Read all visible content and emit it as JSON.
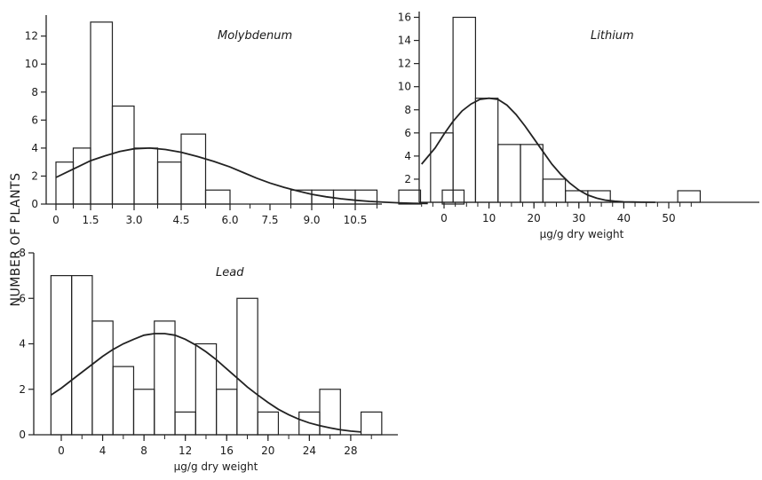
{
  "figure": {
    "shared_ylabel": "NUMBER OF PLANTS"
  },
  "chart_data": [
    {
      "id": "molybdenum",
      "type": "bar",
      "title": "Molybdenum",
      "xlabel": "",
      "ylabel": "NUMBER OF PLANTS",
      "bin_width": 0.75,
      "bins": [
        {
          "x0": 0,
          "x1": 0.75,
          "value": 3
        },
        {
          "x0": 0.75,
          "x1": 1.5,
          "value": 4
        },
        {
          "x0": 1.5,
          "x1": 2.25,
          "value": 13
        },
        {
          "x0": 2.25,
          "x1": 3.0,
          "value": 7
        },
        {
          "x0": 3.0,
          "x1": 3.75,
          "value": 4
        },
        {
          "x0": 3.75,
          "x1": 4.5,
          "value": 3
        },
        {
          "x0": 4.5,
          "x1": 5.25,
          "value": 5
        },
        {
          "x0": 5.25,
          "x1": 6.0,
          "value": 1
        },
        {
          "x0": 8.25,
          "x1": 9.0,
          "value": 1
        },
        {
          "x0": 9.0,
          "x1": 9.75,
          "value": 1
        },
        {
          "x0": 9.75,
          "x1": 10.5,
          "value": 1
        },
        {
          "x0": 10.5,
          "x1": 11.25,
          "value": 1
        },
        {
          "x0": 12.0,
          "x1": 12.75,
          "value": 1
        },
        {
          "x0": 13.5,
          "x1": 14.25,
          "value": 1
        }
      ],
      "xticks": [
        "0",
        "1.5",
        "3.0",
        "4.5",
        "6.0",
        "7.5",
        "9.0",
        "10.5"
      ],
      "yticks": [
        "0",
        "2",
        "4",
        "6",
        "8",
        "10",
        "12"
      ],
      "xlim": [
        0,
        15.2
      ],
      "ylim": [
        0,
        13.5
      ],
      "fit_curve": [
        [
          0,
          1.9
        ],
        [
          0.5,
          2.3
        ],
        [
          1,
          2.7
        ],
        [
          1.5,
          3.1
        ],
        [
          2,
          3.45
        ],
        [
          2.5,
          3.75
        ],
        [
          3,
          3.95
        ],
        [
          3.5,
          4.0
        ],
        [
          4,
          3.9
        ],
        [
          4.5,
          3.7
        ],
        [
          5,
          3.4
        ],
        [
          5.5,
          3.05
        ],
        [
          6,
          2.65
        ],
        [
          6.5,
          2.25
        ],
        [
          7,
          1.85
        ],
        [
          7.5,
          1.5
        ],
        [
          8,
          1.2
        ],
        [
          8.5,
          0.93
        ],
        [
          9,
          0.7
        ],
        [
          9.5,
          0.52
        ],
        [
          10,
          0.38
        ],
        [
          10.5,
          0.27
        ],
        [
          11,
          0.19
        ],
        [
          11.5,
          0.13
        ],
        [
          12,
          0.09
        ],
        [
          12.5,
          0.06
        ],
        [
          13,
          0.04
        ]
      ],
      "grid": false,
      "legend": "none"
    },
    {
      "id": "lithium",
      "type": "bar",
      "title": "Lithium",
      "xlabel": "µg/g  dry weight",
      "ylabel": "",
      "bins": [
        {
          "x0": -3,
          "x1": 2,
          "value": 6
        },
        {
          "x0": 2,
          "x1": 7,
          "value": 16
        },
        {
          "x0": 7,
          "x1": 12,
          "value": 9
        },
        {
          "x0": 12,
          "x1": 17,
          "value": 5
        },
        {
          "x0": 17,
          "x1": 22,
          "value": 5
        },
        {
          "x0": 22,
          "x1": 27,
          "value": 2
        },
        {
          "x0": 27,
          "x1": 32,
          "value": 1
        },
        {
          "x0": 32,
          "x1": 37,
          "value": 1
        },
        {
          "x0": 52,
          "x1": 57,
          "value": 1
        }
      ],
      "xticks": [
        "0",
        "10",
        "20",
        "30",
        "40",
        "50"
      ],
      "yticks": [
        "2",
        "4",
        "6",
        "8",
        "10",
        "12",
        "14",
        "16"
      ],
      "xlim": [
        -5,
        57
      ],
      "ylim": [
        0,
        16.5
      ],
      "fit_curve": [
        [
          -5,
          3.3
        ],
        [
          -2,
          4.7
        ],
        [
          0,
          5.9
        ],
        [
          2,
          7.0
        ],
        [
          4,
          7.9
        ],
        [
          6,
          8.5
        ],
        [
          8,
          8.9
        ],
        [
          10,
          9.0
        ],
        [
          12,
          8.9
        ],
        [
          14,
          8.4
        ],
        [
          16,
          7.6
        ],
        [
          18,
          6.6
        ],
        [
          20,
          5.5
        ],
        [
          22,
          4.4
        ],
        [
          24,
          3.3
        ],
        [
          26,
          2.4
        ],
        [
          28,
          1.65
        ],
        [
          30,
          1.05
        ],
        [
          32,
          0.62
        ],
        [
          34,
          0.35
        ],
        [
          36,
          0.18
        ],
        [
          38,
          0.09
        ],
        [
          40,
          0.04
        ],
        [
          42,
          0.02
        ],
        [
          44,
          0.01
        ],
        [
          47,
          0.0
        ]
      ],
      "grid": false,
      "legend": "none"
    },
    {
      "id": "lead",
      "type": "bar",
      "title": "Lead",
      "xlabel": "µg/g  dry weight",
      "ylabel": "NUMBER OF PLANTS",
      "bin_width": 2,
      "bins": [
        {
          "x0": -1,
          "x1": 1,
          "value": 7
        },
        {
          "x0": 1,
          "x1": 3,
          "value": 7
        },
        {
          "x0": 3,
          "x1": 5,
          "value": 5
        },
        {
          "x0": 5,
          "x1": 7,
          "value": 3
        },
        {
          "x0": 7,
          "x1": 9,
          "value": 2
        },
        {
          "x0": 9,
          "x1": 11,
          "value": 5
        },
        {
          "x0": 11,
          "x1": 13,
          "value": 1
        },
        {
          "x0": 13,
          "x1": 15,
          "value": 4
        },
        {
          "x0": 15,
          "x1": 17,
          "value": 2
        },
        {
          "x0": 17,
          "x1": 19,
          "value": 6
        },
        {
          "x0": 19,
          "x1": 21,
          "value": 1
        },
        {
          "x0": 23,
          "x1": 25,
          "value": 1
        },
        {
          "x0": 25,
          "x1": 27,
          "value": 2
        },
        {
          "x0": 29,
          "x1": 31,
          "value": 1
        }
      ],
      "xticks": [
        "0",
        "4",
        "8",
        "12",
        "16",
        "20",
        "24",
        "28"
      ],
      "yticks": [
        "0",
        "2",
        "4",
        "6",
        "8"
      ],
      "xlim": [
        -1,
        31
      ],
      "ylim": [
        0,
        8
      ],
      "fit_curve": [
        [
          -1,
          1.75
        ],
        [
          0,
          2.05
        ],
        [
          1,
          2.4
        ],
        [
          2,
          2.75
        ],
        [
          3,
          3.1
        ],
        [
          4,
          3.45
        ],
        [
          5,
          3.75
        ],
        [
          6,
          4.0
        ],
        [
          7,
          4.2
        ],
        [
          8,
          4.38
        ],
        [
          9,
          4.45
        ],
        [
          10,
          4.45
        ],
        [
          11,
          4.38
        ],
        [
          12,
          4.2
        ],
        [
          13,
          3.95
        ],
        [
          14,
          3.65
        ],
        [
          15,
          3.3
        ],
        [
          16,
          2.9
        ],
        [
          17,
          2.5
        ],
        [
          18,
          2.1
        ],
        [
          19,
          1.75
        ],
        [
          20,
          1.42
        ],
        [
          21,
          1.12
        ],
        [
          22,
          0.88
        ],
        [
          23,
          0.68
        ],
        [
          24,
          0.52
        ],
        [
          25,
          0.4
        ],
        [
          26,
          0.3
        ],
        [
          27,
          0.22
        ],
        [
          28,
          0.16
        ],
        [
          29,
          0.12
        ]
      ],
      "grid": false,
      "legend": "none"
    }
  ]
}
